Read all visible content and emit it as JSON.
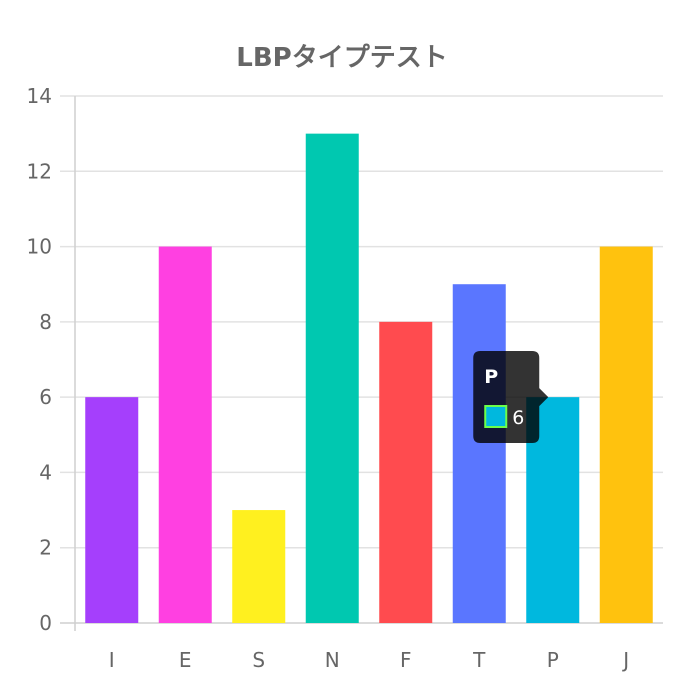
{
  "chart_data": {
    "type": "bar",
    "title": "LBPタイプテスト",
    "categories": [
      "I",
      "E",
      "S",
      "N",
      "F",
      "T",
      "P",
      "J"
    ],
    "values": [
      6,
      10,
      3,
      13,
      8,
      9,
      6,
      10
    ],
    "colors": [
      "#a53ffc",
      "#ff40e1",
      "#fff01f",
      "#00c8b0",
      "#ff4b4f",
      "#5a76ff",
      "#00b8de",
      "#ffc20e"
    ],
    "ylim": [
      0,
      14
    ],
    "yticks": [
      0,
      2,
      4,
      6,
      8,
      10,
      12,
      14
    ],
    "grid": true,
    "legend": "none",
    "tooltip": {
      "category": "P",
      "value_text": "6",
      "swatch_fill": "#00b8de",
      "swatch_border": "#6bff4a"
    }
  }
}
